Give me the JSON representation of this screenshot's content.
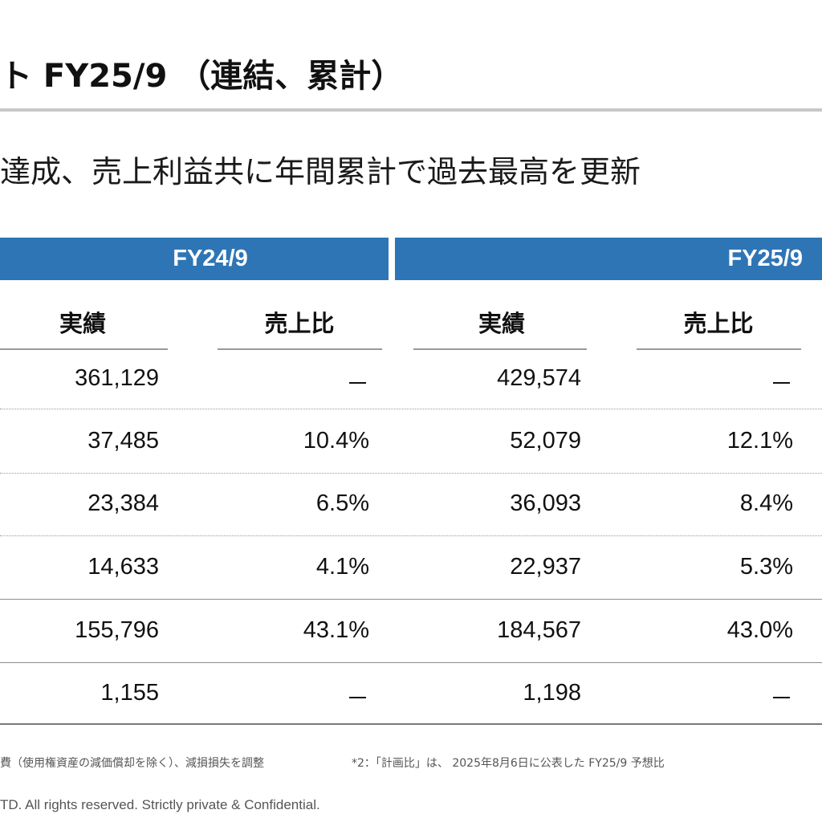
{
  "slide": {
    "title": "ト FY25/9 （連結、累計）",
    "subtitle": "達成、売上利益共に年間累計で過去最高を更新"
  },
  "table": {
    "periods": [
      "FY24/9",
      "FY25/9"
    ],
    "column_headers": {
      "actual": "実績",
      "ratio": "売上比"
    },
    "rows": [
      {
        "fy24_actual": "361,129",
        "fy24_ratio": "－",
        "fy25_actual": "429,574",
        "fy25_ratio": "－"
      },
      {
        "fy24_actual": "37,485",
        "fy24_ratio": "10.4%",
        "fy25_actual": "52,079",
        "fy25_ratio": "12.1%"
      },
      {
        "fy24_actual": "23,384",
        "fy24_ratio": "6.5%",
        "fy25_actual": "36,093",
        "fy25_ratio": "8.4%"
      },
      {
        "fy24_actual": "14,633",
        "fy24_ratio": "4.1%",
        "fy25_actual": "22,937",
        "fy25_ratio": "5.3%"
      },
      {
        "fy24_actual": "155,796",
        "fy24_ratio": "43.1%",
        "fy25_actual": "184,567",
        "fy25_ratio": "43.0%"
      },
      {
        "fy24_actual": "1,155",
        "fy24_ratio": "－",
        "fy25_actual": "1,198",
        "fy25_ratio": "－"
      }
    ]
  },
  "footnotes": {
    "note1": "費（使用権資産の減価償却を除く）、減損損失を調整",
    "note2": "*2：「計画比」は、 2025年8月6日に公表した FY25/9 予想比"
  },
  "copyright": "TD. All rights reserved. Strictly private & Confidential.",
  "colors": {
    "header_band": "#2e75b6",
    "title_rule": "#c8c8c8"
  }
}
